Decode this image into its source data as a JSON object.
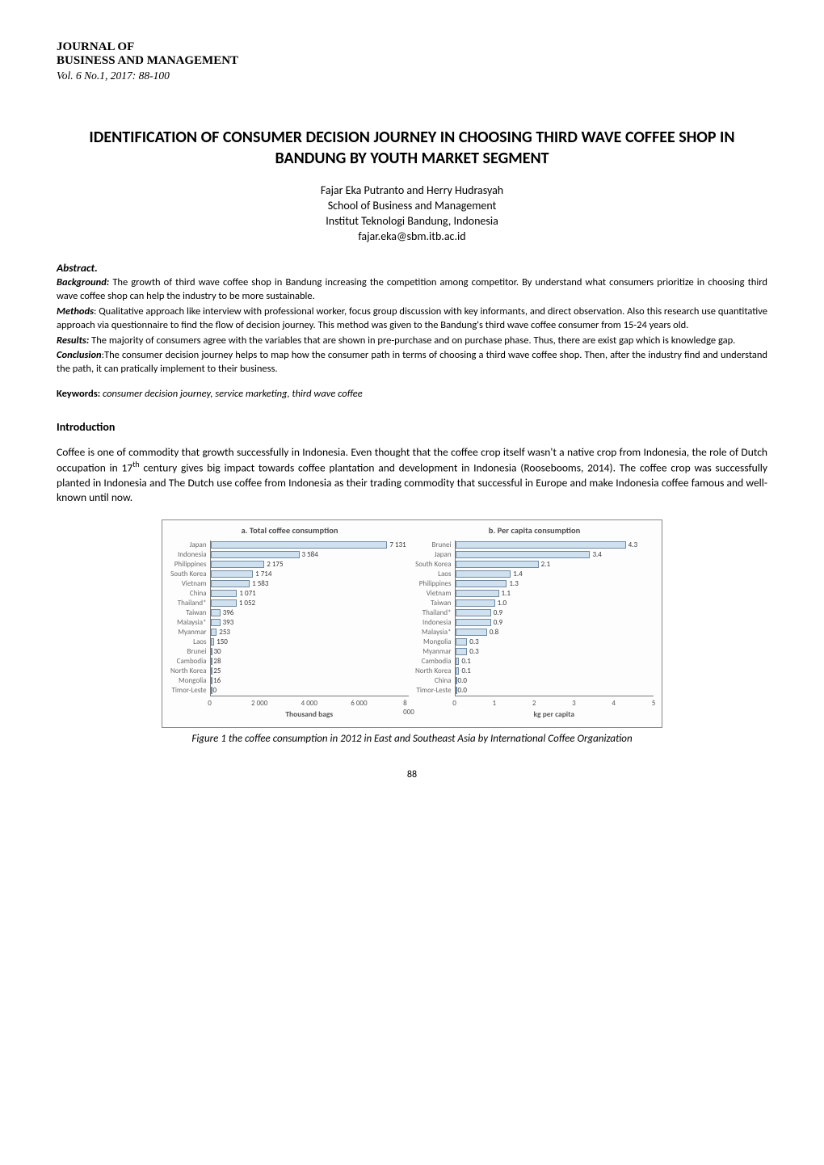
{
  "journal": {
    "line1": "JOURNAL OF",
    "line2": "BUSINESS AND MANAGEMENT",
    "issue": "Vol. 6 No.1, 2017: 88-100"
  },
  "title": "IDENTIFICATION OF CONSUMER DECISION JOURNEY IN CHOOSING THIRD WAVE COFFEE SHOP IN BANDUNG BY YOUTH MARKET SEGMENT",
  "authors": "Fajar Eka Putranto and Herry Hudrasyah",
  "affiliation1": "School of Business and Management",
  "affiliation2": "Institut Teknologi Bandung, Indonesia",
  "email": "fajar.eka@sbm.itb.ac.id",
  "abstract": {
    "heading": "Abstract.",
    "background_label": "Background:",
    "background_text": " The growth of third wave coffee shop in Bandung increasing the competition among competitor. By understand what consumers prioritize in choosing third wave coffee shop can help the industry to be more sustainable.",
    "methods_label": "Methods",
    "methods_text": ": Qualitative approach like interview with professional worker, focus group discussion with key informants, and direct observation. Also this research use quantitative approach via questionnaire to find the flow of decision journey. This method was given to the Bandung's third wave coffee consumer from 15-24 years old.",
    "results_label": "Results:",
    "results_text": " The majority of consumers agree with the variables that are shown in pre-purchase and on purchase phase. Thus, there are exist gap which is knowledge gap.",
    "conclusion_label": "Conclusion",
    "conclusion_text": ":The consumer decision journey helps to map how the consumer path in terms of choosing a third wave coffee shop. Then, after the industry find and understand the path, it can pratically implement to their business."
  },
  "keywords": {
    "label": "Keywords:",
    "text": "  consumer decision journey, service marketing, third wave coffee"
  },
  "section_heading": "Introduction",
  "intro_paragraph_pre": "Coffee is one of commodity that growth successfully in Indonesia. Even thought that the coffee crop itself wasn't a native crop from Indonesia, the role of Dutch occupation in 17",
  "intro_sup": "th",
  "intro_paragraph_post": " century gives big impact towards coffee plantation and development in Indonesia (Roosebooms, 2014). The coffee crop was successfully planted in Indonesia and The Dutch use coffee from Indonesia as their trading commodity that successful in Europe and make Indonesia coffee famous and well-known until now.",
  "figure": {
    "left": {
      "title": "a. Total coffee consumption",
      "type": "horizontal-bar",
      "categories": [
        "Japan",
        "Indonesia",
        "Philippines",
        "South Korea",
        "Vietnam",
        "China",
        "Thailand*",
        "Taiwan",
        "Malaysia*",
        "Myanmar",
        "Laos",
        "Brunei",
        "Cambodia",
        "North Korea",
        "Mongolia",
        "Timor-Leste"
      ],
      "values": [
        7131,
        3584,
        2175,
        1714,
        1583,
        1071,
        1052,
        396,
        393,
        253,
        150,
        30,
        28,
        25,
        16,
        0
      ],
      "value_labels_raw": [
        "7 131",
        "3 584",
        "2 175",
        "1 714",
        "1 583",
        "1 071",
        "1 052",
        "396",
        "393",
        "253",
        "150",
        "30",
        "28",
        "25",
        "16",
        "0"
      ],
      "xlim": [
        0,
        8000
      ],
      "xticks": [
        0,
        2000,
        4000,
        6000,
        8000
      ],
      "xticklabels": [
        "0",
        "2 000",
        "4 000",
        "6 000",
        "8 000"
      ],
      "xlabel": "Thousand bags",
      "bar_fill": "#cfe0ef",
      "bar_border": "#6f8aa3",
      "text_color": "#3a3a3a",
      "font_size": 9
    },
    "right": {
      "title": "b. Per capita consumption",
      "type": "horizontal-bar",
      "categories": [
        "Brunei",
        "Japan",
        "South Korea",
        "Laos",
        "Philippines",
        "Vietnam",
        "Taiwan",
        "Thailand*",
        "Indonesia",
        "Malaysia*",
        "Mongolia",
        "Myanmar",
        "Cambodia",
        "North Korea",
        "China",
        "Timor-Leste"
      ],
      "values": [
        4.3,
        3.4,
        2.1,
        1.4,
        1.3,
        1.1,
        1.0,
        0.9,
        0.9,
        0.8,
        0.3,
        0.3,
        0.1,
        0.1,
        0.0,
        0.0
      ],
      "value_labels_raw": [
        "4.3",
        "3.4",
        "2.1",
        "1.4",
        "1.3",
        "1.1",
        "1.0",
        "0.9",
        "0.9",
        "0.8",
        "0.3",
        "0.3",
        "0.1",
        "0.1",
        "0.0",
        "0.0"
      ],
      "xlim": [
        0,
        5
      ],
      "xticks": [
        0,
        1,
        2,
        3,
        4,
        5
      ],
      "xticklabels": [
        "0",
        "1",
        "2",
        "3",
        "4",
        "5"
      ],
      "xlabel": "kg per capita",
      "bar_fill": "#cfe0ef",
      "bar_border": "#6f8aa3",
      "text_color": "#3a3a3a",
      "font_size": 9
    },
    "box_border_color": "#898989",
    "box_bg": "#fdfdfd",
    "caption_label": "Figure 1 ",
    "caption_text": "the coffee consumption in 2012 in East and Southeast Asia by International Coffee Organization"
  },
  "page_number": "88"
}
